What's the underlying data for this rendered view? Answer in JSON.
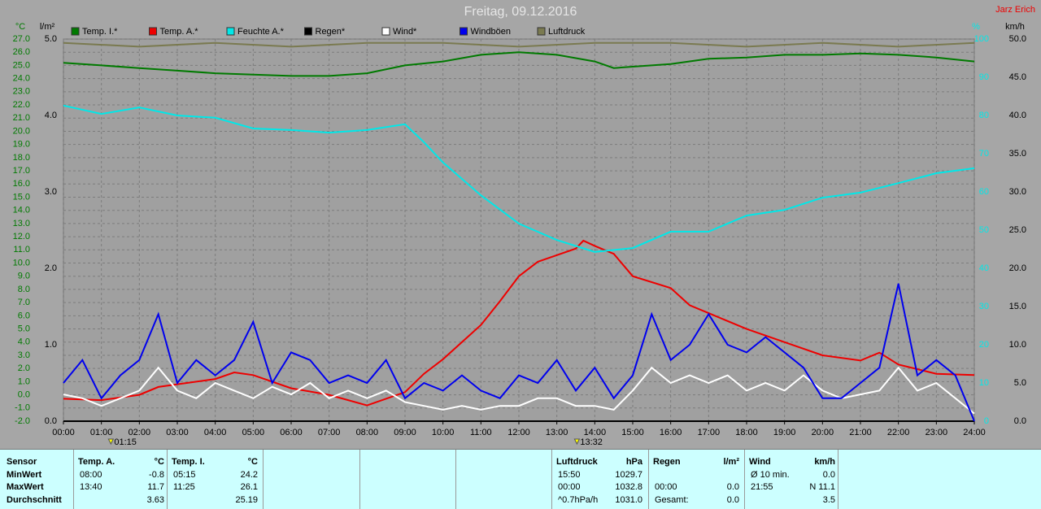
{
  "chart_data": {
    "type": "line",
    "title": "Freitag, 09.12.2016",
    "author": "Jarz Erich",
    "y_label": "°C",
    "y3_label": "l/m²",
    "y4_label": "%",
    "y2_label": "km/h",
    "xlim": [
      0,
      24
    ],
    "xticks": [
      {
        "value": 0,
        "label": "00:00"
      },
      {
        "value": 1,
        "label": "01:00"
      },
      {
        "value": 2,
        "label": "02:00"
      },
      {
        "value": 3,
        "label": "03:00"
      },
      {
        "value": 4,
        "label": "04:00"
      },
      {
        "value": 5,
        "label": "05:00"
      },
      {
        "value": 6,
        "label": "06:00"
      },
      {
        "value": 7,
        "label": "07:00"
      },
      {
        "value": 8,
        "label": "08:00"
      },
      {
        "value": 9,
        "label": "09:00"
      },
      {
        "value": 10,
        "label": "10:00"
      },
      {
        "value": 11,
        "label": "11:00"
      },
      {
        "value": 12,
        "label": "12:00"
      },
      {
        "value": 13,
        "label": "13:00"
      },
      {
        "value": 14,
        "label": "14:00"
      },
      {
        "value": 15,
        "label": "15:00"
      },
      {
        "value": 16,
        "label": "16:00"
      },
      {
        "value": 17,
        "label": "17:00"
      },
      {
        "value": 18,
        "label": "18:00"
      },
      {
        "value": 19,
        "label": "19:00"
      },
      {
        "value": 20,
        "label": "20:00"
      },
      {
        "value": 21,
        "label": "21:00"
      },
      {
        "value": 22,
        "label": "22:00"
      },
      {
        "value": 23,
        "label": "23:00"
      },
      {
        "value": 24,
        "label": "24:00"
      }
    ],
    "ylim": [
      -2,
      27
    ],
    "yticks": [
      {
        "value": -2,
        "label": "-2.0"
      },
      {
        "value": -1,
        "label": "-1.0"
      },
      {
        "value": 0,
        "label": "0.0"
      },
      {
        "value": 1,
        "label": "1.0"
      },
      {
        "value": 2,
        "label": "2.0"
      },
      {
        "value": 3,
        "label": "3.0"
      },
      {
        "value": 4,
        "label": "4.0"
      },
      {
        "value": 5,
        "label": "5.0"
      },
      {
        "value": 6,
        "label": "6.0"
      },
      {
        "value": 7,
        "label": "7.0"
      },
      {
        "value": 8,
        "label": "8.0"
      },
      {
        "value": 9,
        "label": "9.0"
      },
      {
        "value": 10,
        "label": "10.0"
      },
      {
        "value": 11,
        "label": "11.0"
      },
      {
        "value": 12,
        "label": "12.0"
      },
      {
        "value": 13,
        "label": "13.0"
      },
      {
        "value": 14,
        "label": "14.0"
      },
      {
        "value": 15,
        "label": "15.0"
      },
      {
        "value": 16,
        "label": "16.0"
      },
      {
        "value": 17,
        "label": "17.0"
      },
      {
        "value": 18,
        "label": "18.0"
      },
      {
        "value": 19,
        "label": "19.0"
      },
      {
        "value": 20,
        "label": "20.0"
      },
      {
        "value": 21,
        "label": "21.0"
      },
      {
        "value": 22,
        "label": "22.0"
      },
      {
        "value": 23,
        "label": "23.0"
      },
      {
        "value": 24,
        "label": "24.0"
      },
      {
        "value": 25,
        "label": "25.0"
      },
      {
        "value": 26,
        "label": "26.0"
      },
      {
        "value": 27,
        "label": "27.0"
      }
    ],
    "y2lim": [
      0,
      50
    ],
    "y2ticks": [
      {
        "value": 0,
        "label": "0.0"
      },
      {
        "value": 5,
        "label": "5.0"
      },
      {
        "value": 10,
        "label": "10.0"
      },
      {
        "value": 15,
        "label": "15.0"
      },
      {
        "value": 20,
        "label": "20.0"
      },
      {
        "value": 25,
        "label": "25.0"
      },
      {
        "value": 30,
        "label": "30.0"
      },
      {
        "value": 35,
        "label": "35.0"
      },
      {
        "value": 40,
        "label": "40.0"
      },
      {
        "value": 45,
        "label": "45.0"
      },
      {
        "value": 50,
        "label": "50.0"
      }
    ],
    "y3lim": [
      0,
      5
    ],
    "y3ticks": [
      {
        "value": 0,
        "label": "0.0"
      },
      {
        "value": 1,
        "label": "1.0"
      },
      {
        "value": 2,
        "label": "2.0"
      },
      {
        "value": 3,
        "label": "3.0"
      },
      {
        "value": 4,
        "label": "4.0"
      },
      {
        "value": 5,
        "label": "5.0"
      }
    ],
    "y4lim": [
      0,
      100
    ],
    "y4ticks": [
      0,
      10,
      20,
      30,
      40,
      50,
      60,
      70,
      80,
      90,
      100
    ],
    "grid": true,
    "annotations": [
      {
        "x": 1.25,
        "label": "01:15"
      },
      {
        "x": 13.53,
        "label": "13:32"
      }
    ],
    "series": [
      {
        "name": "Temp. I.*",
        "color": "#007a00",
        "axis": "y",
        "x": [
          0,
          1,
          2,
          3,
          4,
          5,
          6,
          7,
          8,
          9,
          10,
          11,
          12,
          13,
          14,
          14.5,
          15,
          16,
          17,
          18,
          19,
          20,
          21,
          22,
          23,
          24
        ],
        "values": [
          25.2,
          25.0,
          24.8,
          24.6,
          24.4,
          24.3,
          24.2,
          24.2,
          24.4,
          25.0,
          25.3,
          25.8,
          26.0,
          25.8,
          25.3,
          24.8,
          24.9,
          25.1,
          25.5,
          25.6,
          25.8,
          25.8,
          25.9,
          25.8,
          25.6,
          25.3
        ]
      },
      {
        "name": "Temp. A.*",
        "color": "#ee0000",
        "axis": "y",
        "x": [
          0,
          1,
          2,
          2.5,
          3,
          4,
          4.5,
          5,
          6,
          7,
          8,
          9,
          9.5,
          10,
          11,
          11.5,
          12,
          12.5,
          13,
          13.5,
          13.7,
          14,
          14.5,
          15,
          16,
          16.5,
          17,
          18,
          19,
          20,
          21,
          21.5,
          22,
          23,
          24
        ],
        "values": [
          -0.3,
          -0.4,
          0.0,
          0.6,
          0.8,
          1.2,
          1.7,
          1.5,
          0.5,
          0.0,
          -0.8,
          0.2,
          1.6,
          2.7,
          5.3,
          7.1,
          9.0,
          10.1,
          10.6,
          11.1,
          11.7,
          11.3,
          10.7,
          9.0,
          8.1,
          6.8,
          6.2,
          5.0,
          4.0,
          3.0,
          2.6,
          3.2,
          2.3,
          1.6,
          1.5
        ]
      },
      {
        "name": "Feuchte A.*",
        "color": "#00e8e8",
        "axis": "y4",
        "x": [
          0,
          1,
          2,
          3,
          4,
          5,
          6,
          7,
          8,
          9,
          9.5,
          10,
          11,
          12,
          13,
          14,
          15,
          16,
          17,
          18,
          19,
          20,
          21,
          22,
          23,
          24
        ],
        "values": [
          82.6,
          80.4,
          82.1,
          80.0,
          79.4,
          76.6,
          76.2,
          75.5,
          76.2,
          77.7,
          73.0,
          67.7,
          59.1,
          51.7,
          47.4,
          44.3,
          45.3,
          49.6,
          49.6,
          53.8,
          55.3,
          58.5,
          59.8,
          62.3,
          64.9,
          66.2
        ]
      },
      {
        "name": "Regen*",
        "color": "#000000",
        "axis": "y3",
        "x": [
          0,
          24
        ],
        "values": [
          0,
          0
        ]
      },
      {
        "name": "Wind*",
        "color": "#ffffff",
        "axis": "y2",
        "x": [
          0,
          0.5,
          1,
          1.5,
          2,
          2.5,
          3,
          3.5,
          4,
          4.5,
          5,
          5.5,
          6,
          6.5,
          7,
          7.5,
          8,
          8.5,
          9,
          9.5,
          10,
          10.5,
          11,
          11.5,
          12,
          12.5,
          13,
          13.5,
          14,
          14.5,
          15,
          15.5,
          16,
          16.5,
          17,
          17.5,
          18,
          18.5,
          19,
          19.5,
          20,
          20.5,
          21,
          21.5,
          22,
          22.5,
          23,
          23.5,
          24
        ],
        "values": [
          3.5,
          3,
          2,
          3,
          4,
          7,
          4,
          3,
          5,
          4,
          3,
          4.5,
          3.5,
          5,
          3,
          4,
          3,
          4,
          2.5,
          2,
          1.5,
          2,
          1.5,
          2,
          2,
          3,
          3,
          2,
          2,
          1.5,
          4,
          7,
          5,
          6,
          5,
          6,
          4,
          5,
          4,
          6,
          4,
          3,
          3.5,
          4,
          7,
          4,
          5,
          3,
          1
        ]
      },
      {
        "name": "Windböen",
        "color": "#0000ee",
        "axis": "y2",
        "x": [
          0,
          0.5,
          1,
          1.5,
          2,
          2.5,
          3,
          3.5,
          4,
          4.5,
          5,
          5.5,
          6,
          6.5,
          7,
          7.5,
          8,
          8.5,
          9,
          9.5,
          10,
          10.5,
          11,
          11.5,
          12,
          12.5,
          13,
          13.5,
          14,
          14.5,
          15,
          15.5,
          16,
          16.5,
          17,
          17.5,
          18,
          18.5,
          19,
          19.5,
          20,
          20.5,
          21,
          21.5,
          22,
          22.5,
          23,
          23.5,
          24
        ],
        "values": [
          5,
          8,
          3,
          6,
          8,
          14,
          5,
          8,
          6,
          8,
          13,
          5,
          9,
          8,
          5,
          6,
          5,
          8,
          3,
          5,
          4,
          6,
          4,
          3,
          6,
          5,
          8,
          4,
          7,
          3,
          6,
          14,
          8,
          10,
          14,
          10,
          9,
          11,
          9,
          7,
          3,
          3,
          5,
          7,
          18,
          6,
          8,
          6,
          0
        ]
      },
      {
        "name": "Luftdruck",
        "color": "#7a7a50",
        "axis": "y4",
        "x": [
          0,
          2,
          4,
          6,
          8,
          10,
          12,
          14,
          16,
          18,
          20,
          22,
          24
        ],
        "values": [
          99,
          98,
          99,
          98,
          99,
          99,
          98,
          99,
          99,
          98,
          99,
          98,
          99
        ]
      }
    ]
  },
  "table": {
    "header": "Sensor",
    "row_labels": [
      "MinWert",
      "MaxWert",
      "Durchschnitt"
    ],
    "sensors": [
      {
        "name": "Temp. A.",
        "unit": "°C",
        "rows": [
          [
            "08:00",
            "-0.8"
          ],
          [
            "13:40",
            "11.7"
          ],
          [
            null,
            "3.63"
          ]
        ]
      },
      {
        "name": "Temp. I.",
        "unit": "°C",
        "rows": [
          [
            "05:15",
            "24.2"
          ],
          [
            "11:25",
            "26.1"
          ],
          [
            null,
            "25.19"
          ]
        ]
      },
      {
        "name": "Luftdruck",
        "unit": "hPa",
        "rows": [
          [
            "15:50",
            "1029.7"
          ],
          [
            "00:00",
            "1032.8"
          ],
          [
            "^0.7hPa/h",
            "1031.0"
          ]
        ]
      },
      {
        "name": "Regen",
        "unit": "l/m²",
        "rows": [
          [
            null,
            null
          ],
          [
            "00:00",
            "0.0"
          ],
          [
            "Gesamt:",
            "0.0"
          ]
        ]
      },
      {
        "name": "Wind",
        "unit": "km/h",
        "rows": [
          [
            "Ø 10 min.",
            "0.0"
          ],
          [
            "21:55",
            "N 11.1"
          ],
          [
            null,
            "3.5"
          ]
        ]
      }
    ]
  }
}
